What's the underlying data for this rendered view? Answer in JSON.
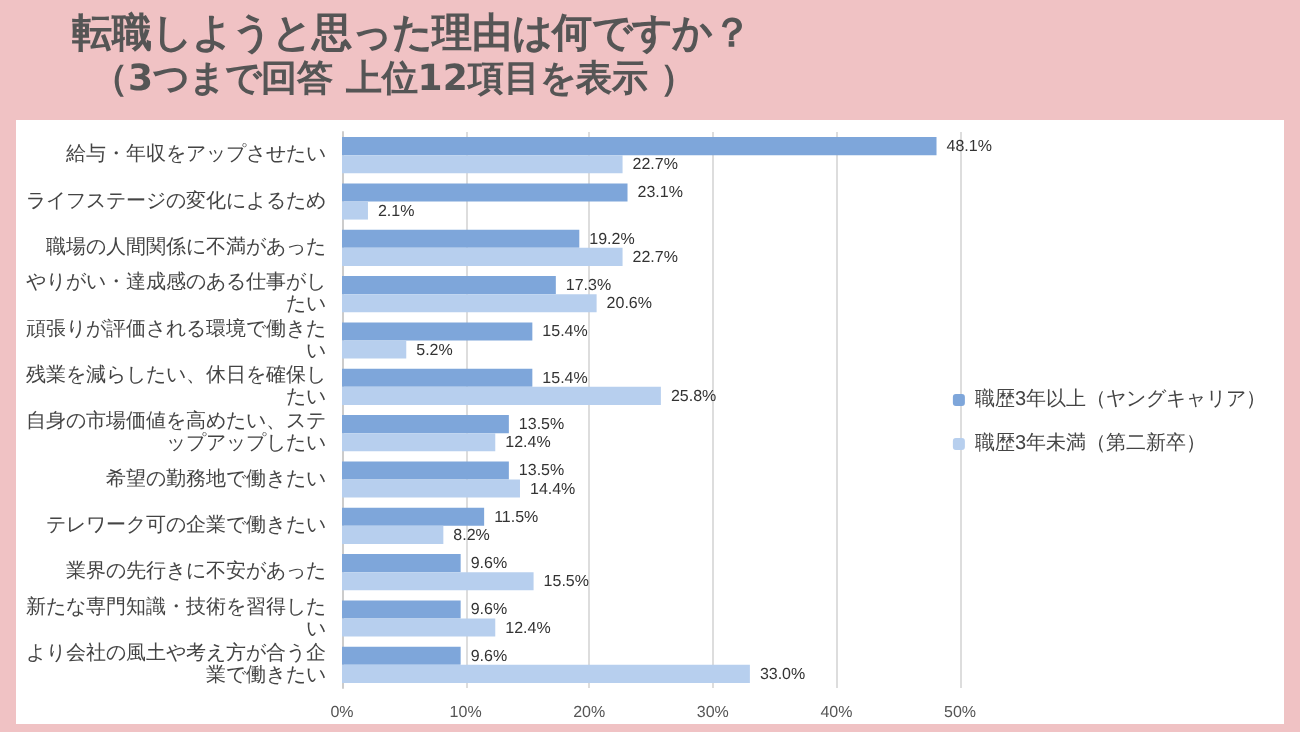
{
  "chart_data": {
    "type": "bar",
    "orientation": "horizontal",
    "title": "転職しようと思った理由は何ですか？",
    "subtitle": "（3つまで回答 上位12項目を表示 ）",
    "categories": [
      "給与・年収をアップさせたい",
      "ライフステージの変化によるため",
      "職場の人間関係に不満があった",
      "やりがい・達成感のある仕事がしたい",
      "頑張りが評価される環境で働きたい",
      "残業を減らしたい、休日を確保したい",
      "自身の市場価値を高めたい、ステップアップしたい",
      "希望の勤務地で働きたい",
      "テレワーク可の企業で働きたい",
      "業界の先行きに不安があった",
      "新たな専門知識・技術を習得したい",
      "より会社の風土や考え方が合う企業で働きたい"
    ],
    "series": [
      {
        "name": "職歴3年以上（ヤングキャリア）",
        "color": "#7ea6da",
        "values": [
          48.1,
          23.1,
          19.2,
          17.3,
          15.4,
          15.4,
          13.5,
          13.5,
          11.5,
          9.6,
          9.6,
          9.6
        ],
        "value_labels": [
          "48.1%",
          "23.1%",
          "19.2%",
          "17.3%",
          "15.4%",
          "15.4%",
          "13.5%",
          "13.5%",
          "11.5%",
          "9.6%",
          "9.6%",
          "9.6%"
        ]
      },
      {
        "name": "職歴3年未満（第二新卒）",
        "color": "#b7cfee",
        "values": [
          22.7,
          2.1,
          22.7,
          20.6,
          5.2,
          25.8,
          12.4,
          14.4,
          8.2,
          15.5,
          12.4,
          33.0
        ],
        "value_labels": [
          "22.7%",
          "2.1%",
          "22.7%",
          "20.6%",
          "5.2%",
          "25.8%",
          "12.4%",
          "14.4%",
          "8.2%",
          "15.5%",
          "12.4%",
          "33.0%"
        ]
      }
    ],
    "xlim": [
      0,
      50
    ],
    "xticks": [
      {
        "value": 0,
        "label": "0%"
      },
      {
        "value": 10,
        "label": "10%"
      },
      {
        "value": 20,
        "label": "20%"
      },
      {
        "value": 30,
        "label": "30%"
      },
      {
        "value": 40,
        "label": "40%"
      },
      {
        "value": 50,
        "label": "50%"
      }
    ],
    "grid": "x",
    "legend": "right"
  }
}
